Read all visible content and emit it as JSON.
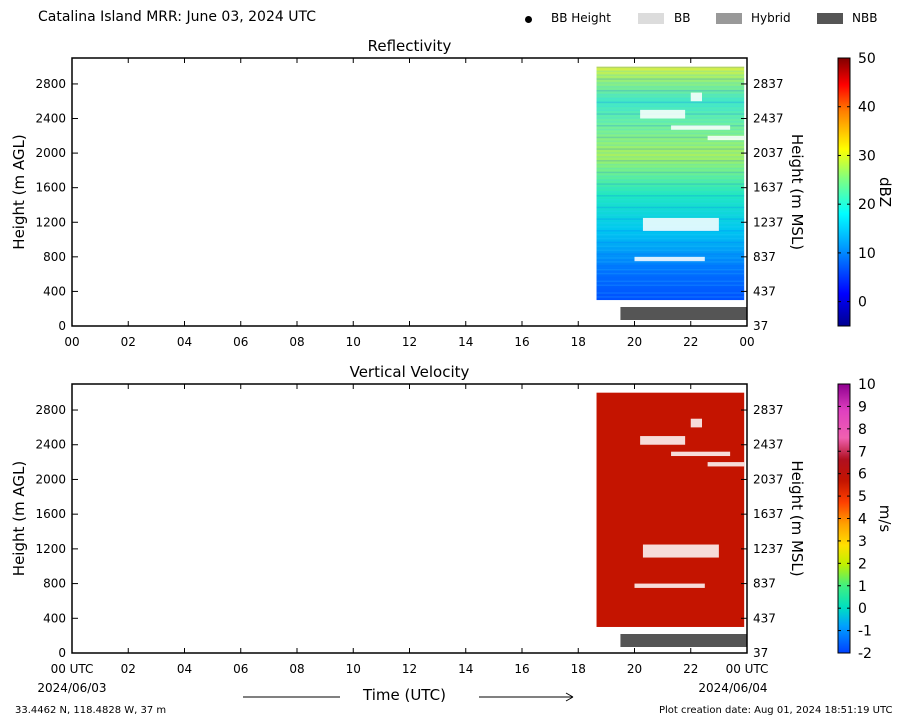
{
  "header": {
    "title": "Catalina Island MRR:  June 03, 2024 UTC",
    "legend": [
      {
        "label": "BB Height",
        "marker": "dot",
        "color": "#000000"
      },
      {
        "label": "BB",
        "marker": "box",
        "color": "#dcdcdc"
      },
      {
        "label": "Hybrid",
        "marker": "box",
        "color": "#999999"
      },
      {
        "label": "NBB",
        "marker": "box",
        "color": "#555555"
      }
    ]
  },
  "chart_data": [
    {
      "type": "heatmap",
      "title": "Reflectivity",
      "ylabel": "Height (m AGL)",
      "ylabel_right": "Height (m MSL)",
      "xlim": [
        0,
        24
      ],
      "ylim": [
        0,
        3100
      ],
      "x_ticks": [
        "00",
        "02",
        "04",
        "06",
        "08",
        "10",
        "12",
        "14",
        "16",
        "18",
        "20",
        "22",
        "00"
      ],
      "y_ticks": [
        0,
        400,
        800,
        1200,
        1600,
        2000,
        2400,
        2800
      ],
      "y_ticks_labels": [
        "0",
        "400",
        "800",
        "1200",
        "1600",
        "2000",
        "2400",
        "2800"
      ],
      "y_right_ticks": [
        "37",
        "437",
        "837",
        "1237",
        "1637",
        "2037",
        "2437",
        "2837"
      ],
      "data_extent": {
        "time_start": 18.65,
        "time_end": 23.9,
        "height_min": 300,
        "height_max": 3000
      },
      "bright_band_type_bar": {
        "type": "NBB",
        "time_start": 19.5,
        "time_end": 24.0
      },
      "colorbar": {
        "label": "dBZ",
        "min": -5,
        "max": 50,
        "ticks": [
          0,
          10,
          20,
          30,
          40,
          50
        ],
        "tick_labels": [
          "0",
          "10",
          "20",
          "30",
          "40",
          "50"
        ]
      }
    },
    {
      "type": "heatmap",
      "title": "Vertical Velocity",
      "ylabel": "Height (m AGL)",
      "ylabel_right": "Height (m MSL)",
      "xlim": [
        0,
        24
      ],
      "ylim": [
        0,
        3100
      ],
      "x_ticks": [
        "00 UTC",
        "02",
        "04",
        "06",
        "08",
        "10",
        "12",
        "14",
        "16",
        "18",
        "20",
        "22",
        "00 UTC"
      ],
      "x_dates": [
        "2024/06/03",
        "2024/06/04"
      ],
      "xlabel": "Time (UTC)",
      "y_ticks": [
        0,
        400,
        800,
        1200,
        1600,
        2000,
        2400,
        2800
      ],
      "y_ticks_labels": [
        "0",
        "400",
        "800",
        "1200",
        "1600",
        "2000",
        "2400",
        "2800"
      ],
      "y_right_ticks": [
        "37",
        "437",
        "837",
        "1237",
        "1637",
        "2037",
        "2437",
        "2837"
      ],
      "data_extent": {
        "time_start": 18.65,
        "time_end": 23.9,
        "height_min": 300,
        "height_max": 3000
      },
      "dominant_value": 6.5,
      "bright_band_type_bar": {
        "type": "NBB",
        "time_start": 19.5,
        "time_end": 24.0
      },
      "colorbar": {
        "label": "m/s",
        "min": -2,
        "max": 10,
        "ticks": [
          -2,
          -1,
          0,
          1,
          2,
          3,
          4,
          5,
          6,
          7,
          8,
          9,
          10
        ],
        "tick_labels": [
          "-2",
          "-1",
          "0",
          "1",
          "2",
          "3",
          "4",
          "5",
          "6",
          "7",
          "8",
          "9",
          "10"
        ]
      }
    }
  ],
  "footer": {
    "location": "33.4462 N, 118.4828 W, 37 m",
    "creation": "Plot creation date: Aug 01, 2024 18:51:19 UTC"
  },
  "colors": {
    "nbb_bar": "#555555",
    "velocity_fill": "#c41400"
  }
}
